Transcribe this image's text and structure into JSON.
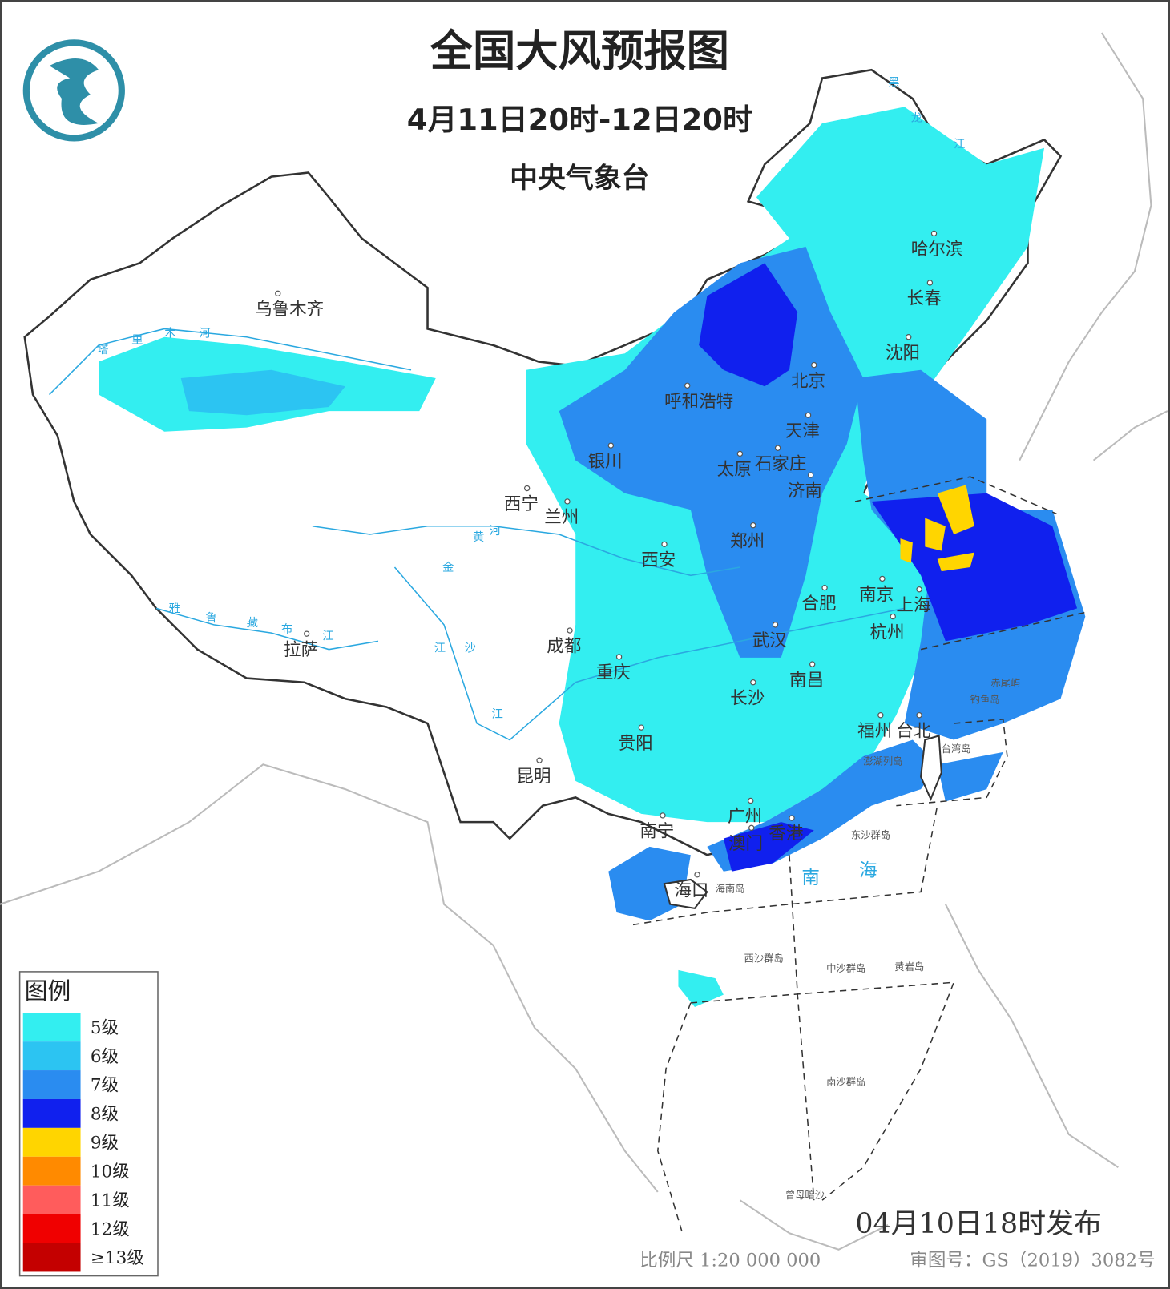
{
  "header": {
    "title": "全国大风预报图",
    "period": "4月11日20时-12日20时",
    "agency": "中央气象台"
  },
  "cities": [
    "乌鲁木齐",
    "拉萨",
    "西宁",
    "兰州",
    "银川",
    "呼和浩特",
    "北京",
    "天津",
    "石家庄",
    "太原",
    "济南",
    "郑州",
    "西安",
    "合肥",
    "南京",
    "上海",
    "杭州",
    "武汉",
    "南昌",
    "长沙",
    "成都",
    "重庆",
    "贵阳",
    "昆明",
    "南宁",
    "广州",
    "香港",
    "澳门",
    "海口",
    "福州",
    "台北",
    "哈尔滨",
    "长春",
    "沈阳"
  ],
  "places": [
    "海南岛",
    "东沙群岛",
    "西沙群岛",
    "中沙群岛",
    "黄岩岛",
    "南沙群岛",
    "曾母暗沙",
    "台湾岛",
    "钓鱼岛",
    "赤尾屿",
    "澎湖列岛"
  ],
  "rivers": [
    "塔",
    "里",
    "木",
    "河",
    "雅",
    "鲁",
    "藏",
    "布",
    "江",
    "黄",
    "河",
    "金",
    "沙",
    "江",
    "江",
    "黑",
    "龙",
    "江"
  ],
  "sea": [
    "南",
    "海"
  ],
  "legend": {
    "title": "图例",
    "items": [
      {
        "label": "5级",
        "color": "#33eef0"
      },
      {
        "label": "6级",
        "color": "#2cc4f2"
      },
      {
        "label": "7级",
        "color": "#2a8cf0"
      },
      {
        "label": "8级",
        "color": "#1020ee"
      },
      {
        "label": "9级",
        "color": "#ffd500"
      },
      {
        "label": "10级",
        "color": "#ff8a00"
      },
      {
        "label": "11级",
        "color": "#ff5c5c"
      },
      {
        "label": "12级",
        "color": "#f00000"
      },
      {
        "label": "≥13级",
        "color": "#c40000"
      }
    ]
  },
  "footer": {
    "issued": "04月10日18时发布",
    "scale": "比例尺 1:20 000 000",
    "approval": "审图号：GS（2019）3082号"
  }
}
